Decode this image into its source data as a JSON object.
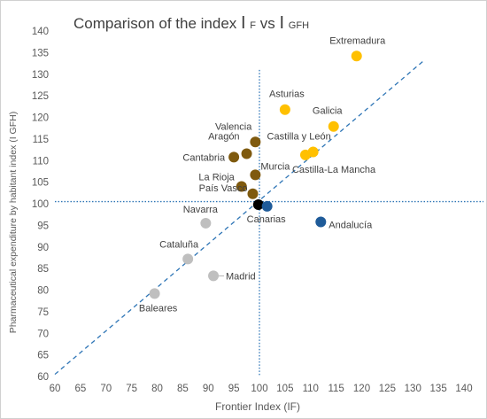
{
  "chart_data": {
    "type": "scatter",
    "title": {
      "prefix": "Comparison of the index ",
      "var1": "I",
      "var1_sub": "F",
      "middle": " vs ",
      "var2": "I",
      "var2_sub": "GFH"
    },
    "xlabel": "Frontier Index (IF)",
    "ylabel": "Pharmaceutical expenditure by habitant index (I GFH)",
    "xlim": [
      60,
      140
    ],
    "ylim": [
      60,
      140
    ],
    "x_ticks": [
      "60",
      "65",
      "70",
      "75",
      "80",
      "85",
      "90",
      "95",
      "100",
      "105",
      "110",
      "115",
      "120",
      "125",
      "130",
      "135",
      "140"
    ],
    "y_ticks": [
      "60",
      "65",
      "70",
      "75",
      "80",
      "85",
      "90",
      "95",
      "100",
      "105",
      "110",
      "115",
      "120",
      "125",
      "130",
      "135",
      "140"
    ],
    "reference_lines": {
      "x": 100,
      "y": 100.5
    },
    "diagonal_line": {
      "x": [
        60,
        132
      ],
      "y": [
        60.5,
        133
      ]
    },
    "grid": false,
    "colors": {
      "yellow": "#ffc000",
      "brown": "#7f5a0f",
      "grey": "#bfbfbf",
      "blue": "#1f5b99",
      "black": "#000000",
      "guide": "#2e75b6"
    },
    "points": [
      {
        "label": "Extremadura",
        "x": 119,
        "y": 134.2,
        "color": "yellow"
      },
      {
        "label": "Asturias",
        "x": 105,
        "y": 121.8,
        "color": "yellow"
      },
      {
        "label": "Galicia",
        "x": 114.5,
        "y": 117.9,
        "color": "yellow"
      },
      {
        "label": "Castilla y León",
        "x": 110.5,
        "y": 112.0,
        "color": "yellow"
      },
      {
        "label": "Castilla-La Mancha",
        "x": 109,
        "y": 111.3,
        "color": "yellow"
      },
      {
        "label": "Valencia",
        "x": 99.2,
        "y": 114.3,
        "color": "brown"
      },
      {
        "label": "Aragón",
        "x": 97.5,
        "y": 111.6,
        "color": "brown"
      },
      {
        "label": "Cantabria",
        "x": 95,
        "y": 110.8,
        "color": "brown"
      },
      {
        "label": "Murcia",
        "x": 99.2,
        "y": 106.7,
        "color": "brown"
      },
      {
        "label": "La Rioja",
        "x": 96.5,
        "y": 104.0,
        "color": "brown"
      },
      {
        "label": "País Vasco",
        "x": 98.7,
        "y": 102.3,
        "color": "brown"
      },
      {
        "label": "",
        "x": 99.8,
        "y": 99.8,
        "color": "black"
      },
      {
        "label": "Canarias",
        "x": 101.5,
        "y": 99.4,
        "color": "blue"
      },
      {
        "label": "Andalucía",
        "x": 112,
        "y": 95.8,
        "color": "blue"
      },
      {
        "label": "Navarra",
        "x": 89.5,
        "y": 95.5,
        "color": "grey"
      },
      {
        "label": "Cataluña",
        "x": 86,
        "y": 87.2,
        "color": "grey"
      },
      {
        "label": "Madrid",
        "x": 91,
        "y": 83.3,
        "color": "grey"
      },
      {
        "label": "Baleares",
        "x": 79.5,
        "y": 79.2,
        "color": "grey"
      }
    ]
  }
}
